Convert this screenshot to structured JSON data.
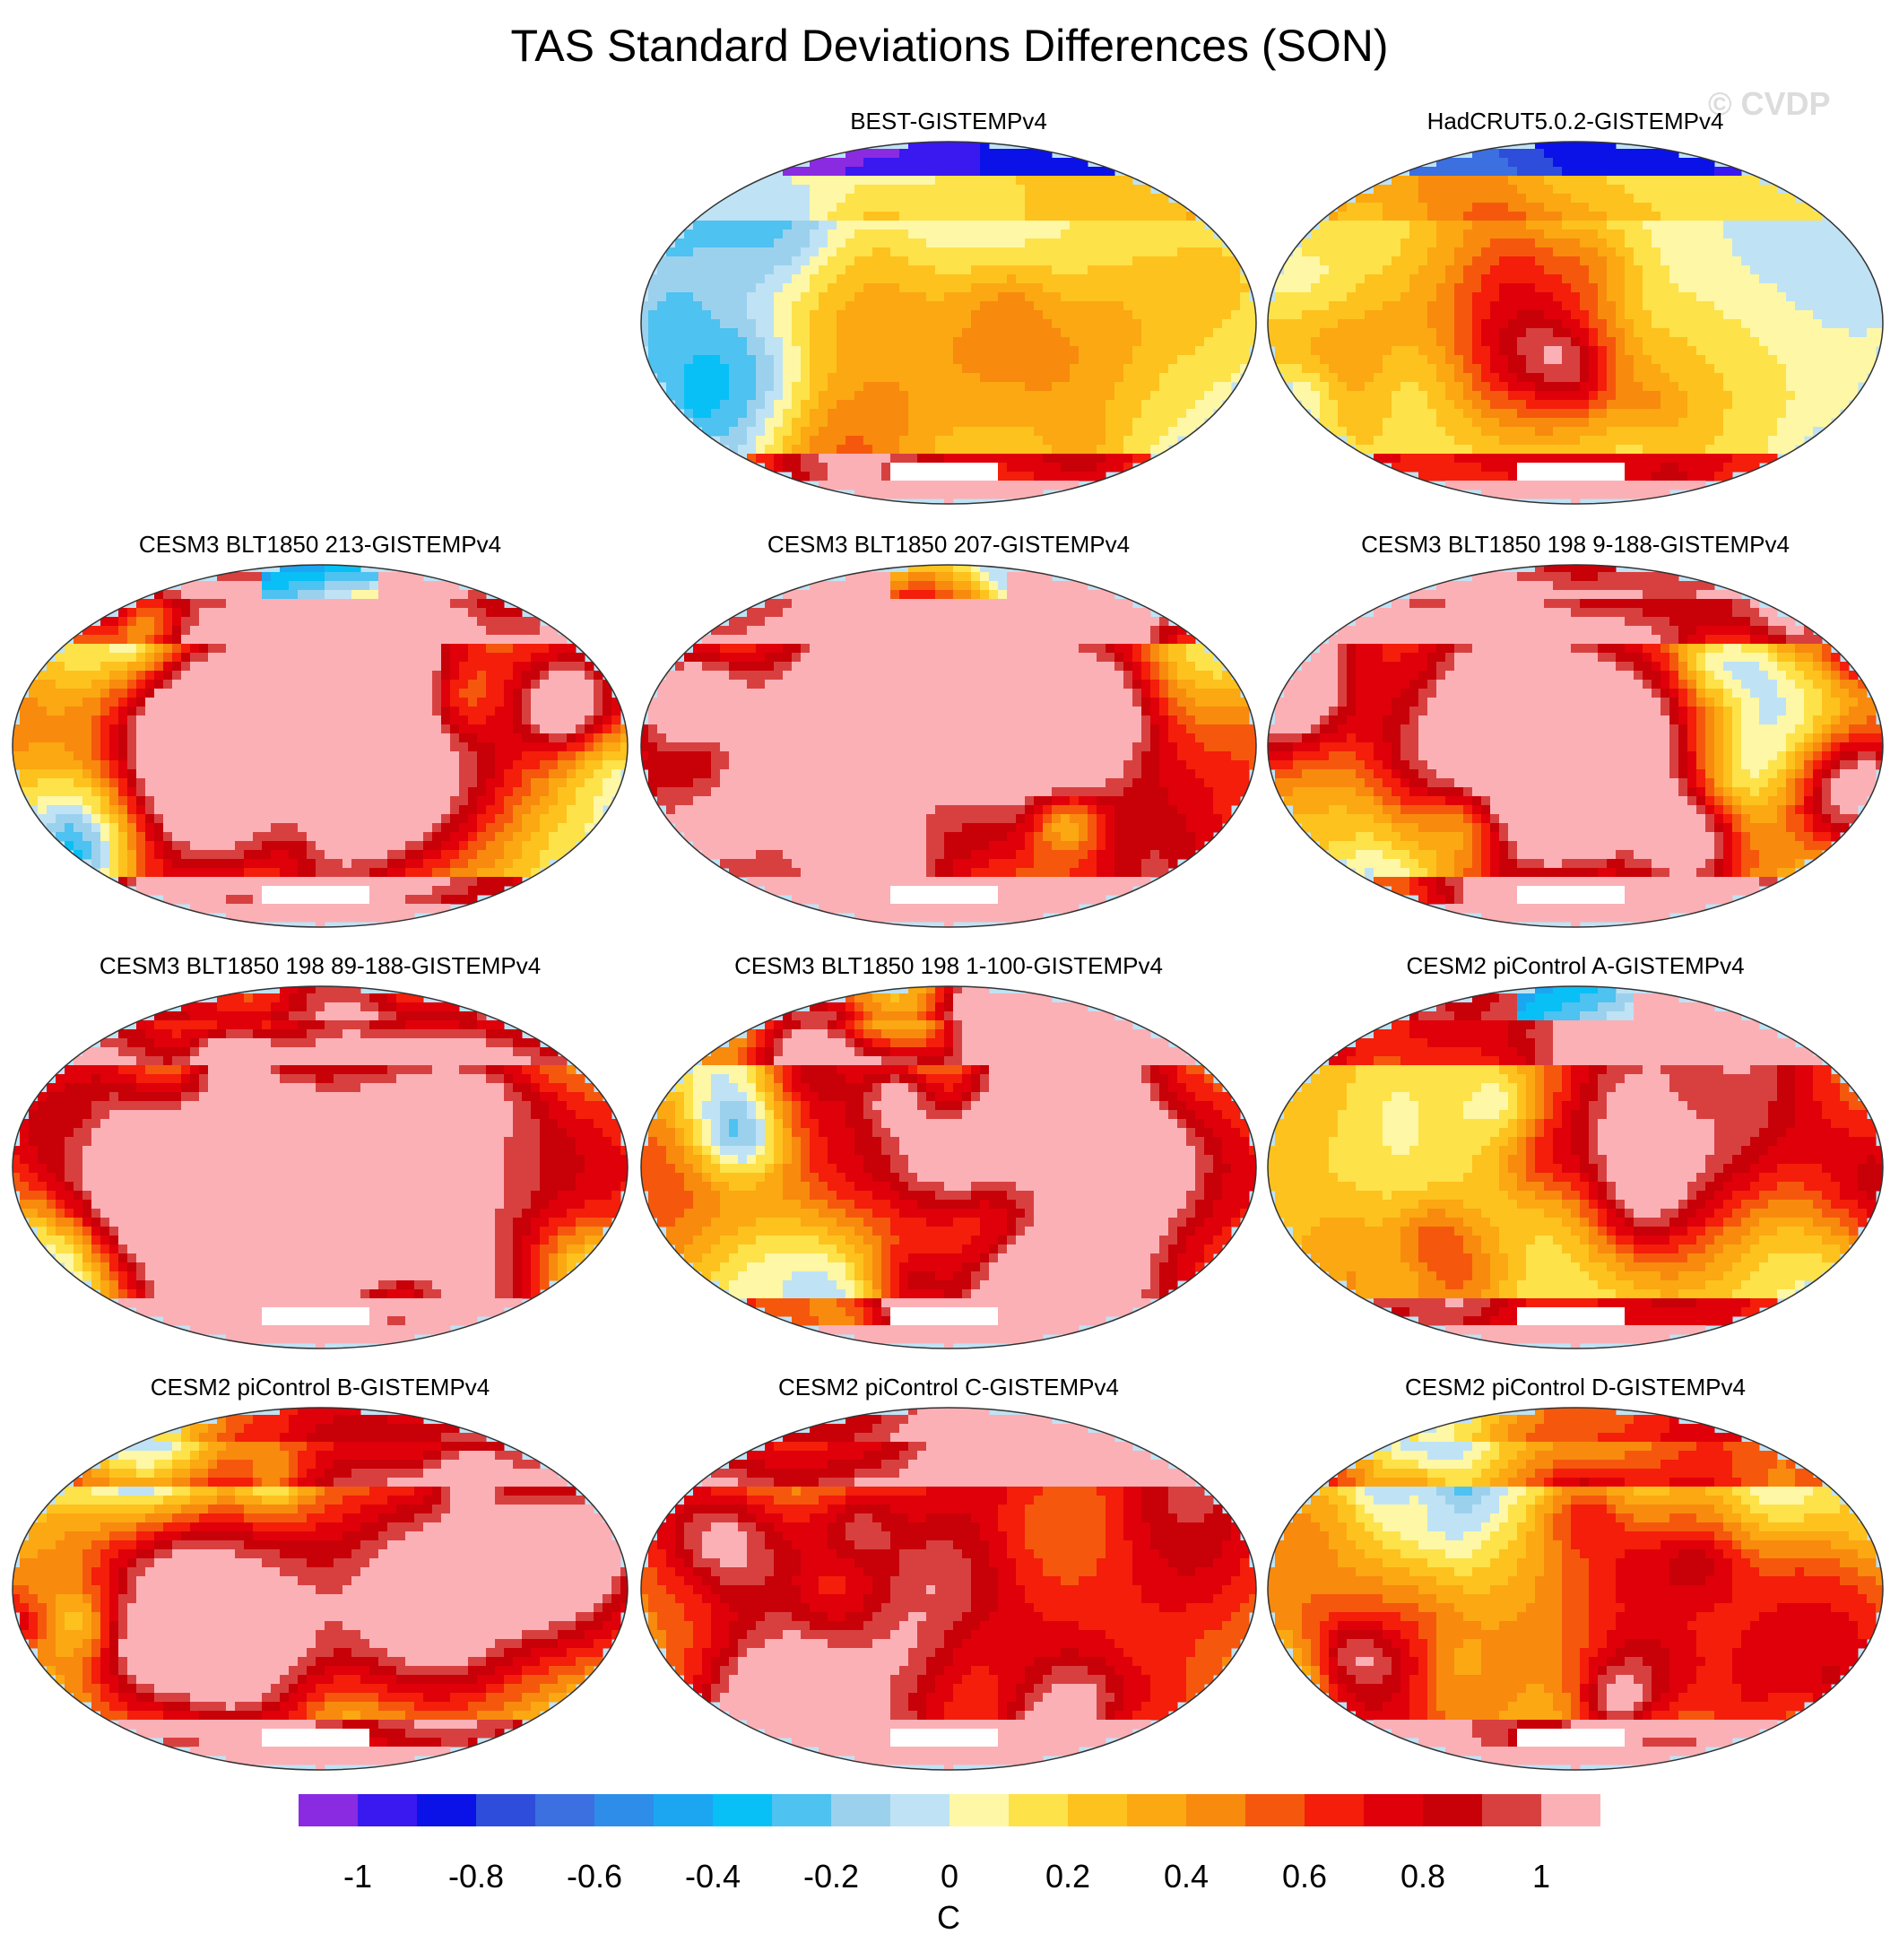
{
  "title": "TAS Standard Deviations Differences (SON)",
  "watermark": "© CVDP",
  "panels": [
    {
      "label": "BEST-GISTEMPv4",
      "seed": 11,
      "intensity": 0.35,
      "arctic": "cold"
    },
    {
      "label": "HadCRUT5.0.2-GISTEMPv4",
      "seed": 23,
      "intensity": 0.3,
      "arctic": "cold"
    },
    {
      "label": "CESM3 BLT1850 213-GISTEMPv4",
      "seed": 31,
      "intensity": 0.8,
      "arctic": "mixed"
    },
    {
      "label": "CESM3 BLT1850 207-GISTEMPv4",
      "seed": 37,
      "intensity": 0.8,
      "arctic": "mixed"
    },
    {
      "label": "CESM3 BLT1850 198 9-188-GISTEMPv4",
      "seed": 41,
      "intensity": 0.8,
      "arctic": "warm"
    },
    {
      "label": "CESM3 BLT1850 198 89-188-GISTEMPv4",
      "seed": 43,
      "intensity": 0.85,
      "arctic": "warm"
    },
    {
      "label": "CESM3 BLT1850 198 1-100-GISTEMPv4",
      "seed": 47,
      "intensity": 0.8,
      "arctic": "warm"
    },
    {
      "label": "CESM2 piControl A-GISTEMPv4",
      "seed": 53,
      "intensity": 0.55,
      "arctic": "mixed"
    },
    {
      "label": "CESM2 piControl B-GISTEMPv4",
      "seed": 59,
      "intensity": 0.55,
      "arctic": "warm"
    },
    {
      "label": "CESM2 piControl C-GISTEMPv4",
      "seed": 61,
      "intensity": 0.55,
      "arctic": "warm"
    },
    {
      "label": "CESM2 piControl D-GISTEMPv4",
      "seed": 67,
      "intensity": 0.55,
      "arctic": "warm"
    }
  ],
  "colorbar": {
    "colors": [
      "#8a2be2",
      "#3a18f0",
      "#0a12e8",
      "#2e4ddb",
      "#3c6fe0",
      "#2e8de8",
      "#1ca6f2",
      "#08c0f5",
      "#4ec2f0",
      "#9cd1ee",
      "#bfe3f5",
      "#fdf7a6",
      "#fde24a",
      "#fdc21e",
      "#fba812",
      "#f88a0e",
      "#f5580c",
      "#f41e0a",
      "#e0000a",
      "#c80008",
      "#d84040",
      "#fbb0b6"
    ],
    "tick_labels": [
      "-1",
      "-0.8",
      "-0.6",
      "-0.4",
      "-0.2",
      "0",
      "0.2",
      "0.4",
      "0.6",
      "0.8",
      "1"
    ],
    "tick_values": [
      -1,
      -0.8,
      -0.6,
      -0.4,
      -0.2,
      0,
      0.2,
      0.4,
      0.6,
      0.8,
      1
    ],
    "units": "C"
  }
}
